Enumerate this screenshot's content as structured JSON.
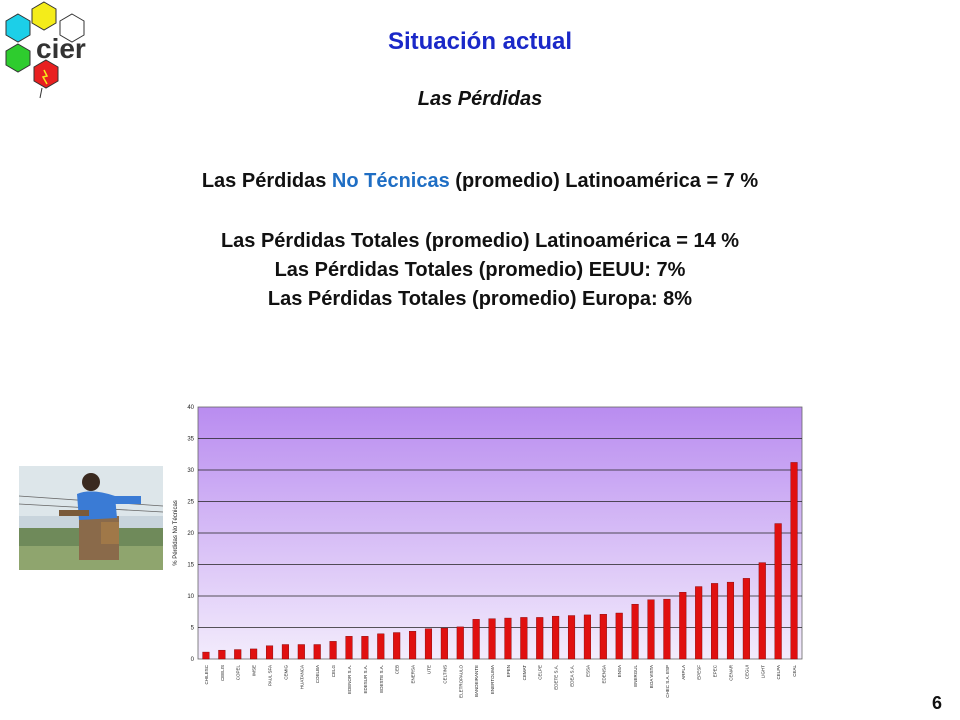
{
  "logo": {
    "text": "cier"
  },
  "header": {
    "title": "Situación actual",
    "subtitle": "Las Pérdidas"
  },
  "statements": {
    "line1_pre": "Las Pérdidas ",
    "line1_hl": "No Técnicas",
    "line1_post": " (promedio) Latinoamérica = 7 %",
    "line2": "Las Pérdidas Totales (promedio) Latinoamérica = 14 %",
    "line3": "Las Pérdidas Totales (promedio) EEUU: 7%",
    "line4": "Las Pérdidas Totales (promedio) Europa: 8%"
  },
  "page_number": "6",
  "colors": {
    "title": "#1a28c8",
    "highlight": "#1f6ec4",
    "bar": "#e01010",
    "plot_top": "#b98cf0",
    "plot_bottom": "#f3ecfc"
  },
  "chart_data": {
    "type": "bar",
    "ylabel": "% Pérdidas No Técnicas",
    "ylim": [
      0,
      40
    ],
    "yticks": [
      0,
      5,
      10,
      15,
      20,
      25,
      30,
      35,
      40
    ],
    "grid": true,
    "categories": [
      "CHILESC",
      "CEELIS",
      "COPEL",
      "IMSE",
      "PAUL SFA",
      "CEMIG",
      "HUATANCA",
      "COELBA",
      "CELG",
      "EDENOR S.A.",
      "EDESUR S.A.",
      "EDESTE S.A.",
      "CEB",
      "ENERSA",
      "UTE",
      "CELTINS",
      "ELETROPAULO",
      "BANDEIRANTE",
      "ENERTOLIMA",
      "EPEN",
      "CEMAT",
      "CELPE",
      "EDETE S.A.",
      "EDEA S.A.",
      "ESSA",
      "EDENSA",
      "ENSA",
      "ENERGUL",
      "BOA VISTA",
      "CHEC S.A. ESP",
      "ARPLA",
      "EPESF",
      "EPEC",
      "CENAR",
      "CEGUI",
      "LIGHT",
      "CELPA",
      "CEAL"
    ],
    "values": [
      1.1,
      1.4,
      1.5,
      1.6,
      2.1,
      2.3,
      2.3,
      2.3,
      2.8,
      3.6,
      3.6,
      4.0,
      4.2,
      4.4,
      4.8,
      4.9,
      5.1,
      6.3,
      6.4,
      6.5,
      6.6,
      6.6,
      6.8,
      6.9,
      7.0,
      7.1,
      7.3,
      8.7,
      9.4,
      9.5,
      10.6,
      11.5,
      12.0,
      12.2,
      12.8,
      15.3,
      21.5,
      31.2
    ]
  }
}
